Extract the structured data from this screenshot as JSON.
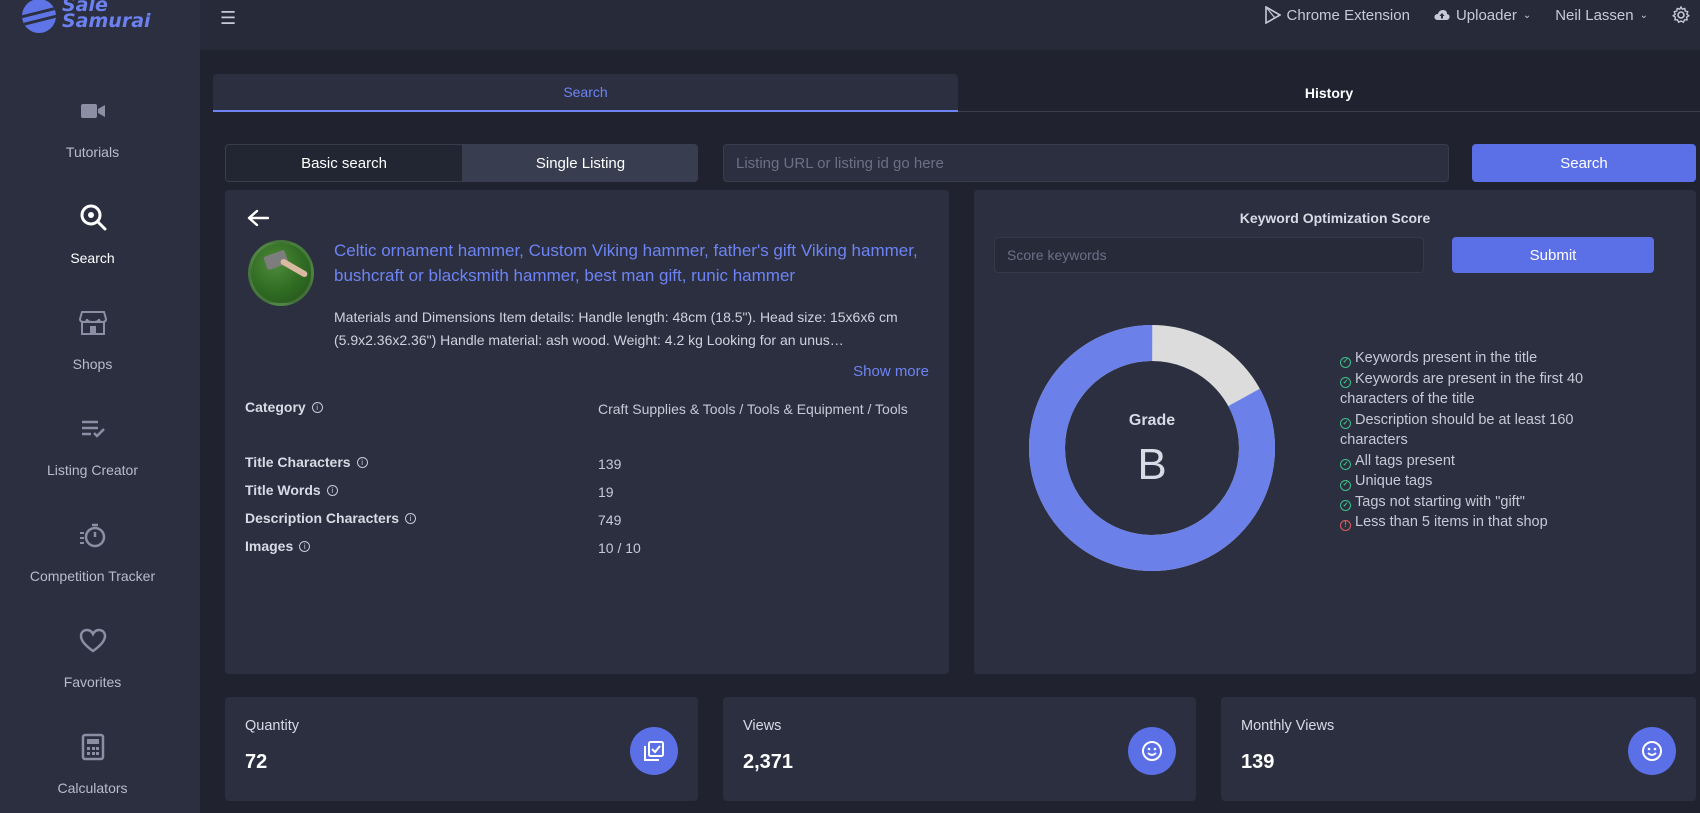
{
  "brand": {
    "line1": "Sale",
    "line2": "Samurai"
  },
  "sidebar": {
    "items": [
      {
        "label": "Tutorials",
        "icon": "video-camera-icon"
      },
      {
        "label": "Search",
        "icon": "search-icon",
        "active": true
      },
      {
        "label": "Shops",
        "icon": "storefront-icon"
      },
      {
        "label": "Listing Creator",
        "icon": "list-check-icon"
      },
      {
        "label": "Competition Tracker",
        "icon": "stopwatch-icon"
      },
      {
        "label": "Favorites",
        "icon": "heart-icon"
      },
      {
        "label": "Calculators",
        "icon": "calculator-icon"
      }
    ]
  },
  "topbar": {
    "chrome_extension": "Chrome Extension",
    "uploader": "Uploader",
    "user": "Neil Lassen"
  },
  "tabs": {
    "search": "Search",
    "history": "History"
  },
  "search": {
    "basic": "Basic search",
    "single": "Single Listing",
    "placeholder": "Listing URL or listing id go here",
    "button": "Search"
  },
  "listing": {
    "title": "Celtic ornament hammer, Custom Viking hammer, father's gift Viking hammer, bushcraft or blacksmith hammer, best man gift, runic hammer",
    "description": "Materials and Dimensions Item details: Handle length: 48cm (18.5\"). Head size: 15x6x6 cm (5.9x2.36x2.36\") Handle material: ash wood. Weight: 4.2 kg Looking for an unus…",
    "show_more": "Show more",
    "details": [
      {
        "label": "Category",
        "value": "Craft Supplies & Tools / Tools & Equipment / Tools"
      },
      {
        "label": "Title Characters",
        "value": "139"
      },
      {
        "label": "Title Words",
        "value": "19"
      },
      {
        "label": "Description Characters",
        "value": "749"
      },
      {
        "label": "Images",
        "value": "10 / 10"
      }
    ]
  },
  "score": {
    "title": "Keyword Optimization Score",
    "placeholder": "Score keywords",
    "submit": "Submit",
    "grade_label": "Grade",
    "grade": "B",
    "fill_fraction": 0.83,
    "fill_color": "#6b80e8",
    "rest_color": "#dcdcdc",
    "checks": [
      {
        "text": "Keywords present in the title",
        "ok": true
      },
      {
        "text": "Keywords are present in the first 40 characters of the title",
        "ok": true
      },
      {
        "text": "Description should be at least 160 characters",
        "ok": true
      },
      {
        "text": "All tags present",
        "ok": true
      },
      {
        "text": "Unique tags",
        "ok": true
      },
      {
        "text": "Tags not starting with \"gift\"",
        "ok": true
      },
      {
        "text": "Less than 5 items in that shop",
        "ok": false
      }
    ]
  },
  "stats": [
    {
      "label": "Quantity",
      "value": "72",
      "icon": "checklist-icon"
    },
    {
      "label": "Views",
      "value": "2,371",
      "icon": "smiley-icon"
    },
    {
      "label": "Monthly Views",
      "value": "139",
      "icon": "smiley-icon"
    }
  ],
  "colors": {
    "accent": "#5b6fe6",
    "link": "#6e84f5",
    "ok": "#3ec08a",
    "warn": "#e35d5d"
  }
}
